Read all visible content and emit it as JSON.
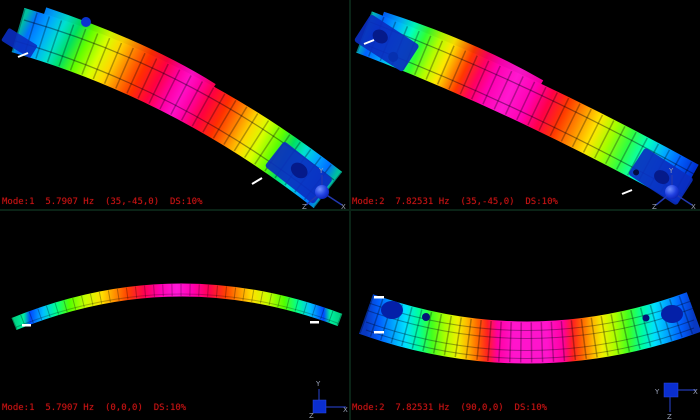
{
  "window": {
    "background": "#000000",
    "divider_color": "#0a2316",
    "description": "Modal analysis results - four viewports"
  },
  "colors": {
    "label_red": "#c81515",
    "triad_line_blue": "#2238b0",
    "triad_label_gray": "#9aa2b8",
    "triad_marker_blue": "#0a2ed0",
    "clamp_blue": "#0a2ec0",
    "eye_hole_blue": "#051a8a",
    "constraint_marker_white": "#ffffff"
  },
  "colormap_min_to_max": [
    "#0030d0",
    "#0070ff",
    "#00b0ff",
    "#00e0d0",
    "#00ff80",
    "#60ff00",
    "#d8ff00",
    "#ffd800",
    "#ff8800",
    "#ff3000",
    "#ff0040",
    "#ff10c8"
  ],
  "viewports": [
    {
      "name": "top-left",
      "label": "Mode:1  5.7907 Hz  (35,-45,0)  DS:10%",
      "triad_labels": [
        "Y",
        "Z",
        "X"
      ]
    },
    {
      "name": "top-right",
      "label": "Mode:2  7.82531 Hz  (35,-45,0)  DS:10%",
      "triad_labels": [
        "Y",
        "Z",
        "X"
      ]
    },
    {
      "name": "bottom-left",
      "label": "Mode:1  5.7907 Hz  (0,0,0)  DS:10%",
      "triad_labels": [
        "Y",
        "Z",
        "X"
      ]
    },
    {
      "name": "bottom-right",
      "label": "Mode:2  7.82531 Hz  (90,0,0)  DS:10%",
      "triad_labels": [
        "Y",
        "X",
        "Z"
      ]
    }
  ],
  "gradients": {
    "grad-tl": [
      [
        0,
        "#00c0a0"
      ],
      [
        0.03,
        "#0070ff"
      ],
      [
        0.07,
        "#00a8ff"
      ],
      [
        0.11,
        "#00e0d0"
      ],
      [
        0.15,
        "#00e060"
      ],
      [
        0.19,
        "#60ff00"
      ],
      [
        0.24,
        "#d8ff00"
      ],
      [
        0.28,
        "#ffd800"
      ],
      [
        0.32,
        "#ff8800"
      ],
      [
        0.37,
        "#ff3000"
      ],
      [
        0.42,
        "#ff0040"
      ],
      [
        0.47,
        "#ff00a8"
      ],
      [
        0.5,
        "#ff10c8"
      ],
      [
        0.53,
        "#ff00a8"
      ],
      [
        0.58,
        "#ff0040"
      ],
      [
        0.63,
        "#ff3000"
      ],
      [
        0.68,
        "#ff8800"
      ],
      [
        0.72,
        "#ffd800"
      ],
      [
        0.76,
        "#d8ff00"
      ],
      [
        0.81,
        "#60ff00"
      ],
      [
        0.85,
        "#00e060"
      ],
      [
        0.89,
        "#00e0d0"
      ],
      [
        0.93,
        "#00a8ff"
      ],
      [
        0.97,
        "#0070ff"
      ],
      [
        1,
        "#00c0a0"
      ]
    ],
    "grad-tr": [
      [
        0,
        "#00c0b0"
      ],
      [
        0.03,
        "#0060ff"
      ],
      [
        0.08,
        "#00b0ff"
      ],
      [
        0.12,
        "#00ffc0"
      ],
      [
        0.16,
        "#30ff30"
      ],
      [
        0.2,
        "#b0ff00"
      ],
      [
        0.24,
        "#ffe800"
      ],
      [
        0.27,
        "#ff9000"
      ],
      [
        0.3,
        "#ff3800"
      ],
      [
        0.34,
        "#ff0060"
      ],
      [
        0.38,
        "#ff00b0"
      ],
      [
        0.44,
        "#ff18d0"
      ],
      [
        0.5,
        "#ff00b0"
      ],
      [
        0.55,
        "#ff0048"
      ],
      [
        0.6,
        "#ff3800"
      ],
      [
        0.65,
        "#ff9000"
      ],
      [
        0.7,
        "#ffe800"
      ],
      [
        0.75,
        "#a0ff00"
      ],
      [
        0.8,
        "#30ff40"
      ],
      [
        0.85,
        "#00ffc0"
      ],
      [
        0.9,
        "#00b0ff"
      ],
      [
        0.95,
        "#0060ff"
      ],
      [
        1,
        "#0030d0"
      ]
    ],
    "grad-bl": [
      [
        0,
        "#00d080"
      ],
      [
        0.03,
        "#00f0a0"
      ],
      [
        0.05,
        "#0048ff"
      ],
      [
        0.09,
        "#00c0ff"
      ],
      [
        0.13,
        "#00ff90"
      ],
      [
        0.17,
        "#50ff00"
      ],
      [
        0.22,
        "#c8ff00"
      ],
      [
        0.27,
        "#ffe000"
      ],
      [
        0.31,
        "#ff9000"
      ],
      [
        0.35,
        "#ff4000"
      ],
      [
        0.4,
        "#ff0050"
      ],
      [
        0.45,
        "#ff00b0"
      ],
      [
        0.5,
        "#ff18d8"
      ],
      [
        0.55,
        "#ff00b0"
      ],
      [
        0.6,
        "#ff0050"
      ],
      [
        0.65,
        "#ff4000"
      ],
      [
        0.69,
        "#ff9000"
      ],
      [
        0.73,
        "#ffe000"
      ],
      [
        0.78,
        "#c8ff00"
      ],
      [
        0.83,
        "#50ff00"
      ],
      [
        0.87,
        "#00ff90"
      ],
      [
        0.91,
        "#00c0ff"
      ],
      [
        0.95,
        "#0048ff"
      ],
      [
        0.97,
        "#00f0a0"
      ],
      [
        1,
        "#00d080"
      ]
    ],
    "grad-br": [
      [
        0,
        "#0838c0"
      ],
      [
        0.04,
        "#0060ff"
      ],
      [
        0.08,
        "#00a0ff"
      ],
      [
        0.12,
        "#00e0ff"
      ],
      [
        0.16,
        "#00ff9c"
      ],
      [
        0.2,
        "#40ff20"
      ],
      [
        0.24,
        "#a8ff00"
      ],
      [
        0.28,
        "#f0f000"
      ],
      [
        0.31,
        "#ffb400"
      ],
      [
        0.34,
        "#ff6800"
      ],
      [
        0.37,
        "#ff2020"
      ],
      [
        0.4,
        "#ff00a0"
      ],
      [
        0.45,
        "#ff14cc"
      ],
      [
        0.55,
        "#ff14cc"
      ],
      [
        0.6,
        "#ff00a0"
      ],
      [
        0.63,
        "#ff2020"
      ],
      [
        0.66,
        "#ff6800"
      ],
      [
        0.69,
        "#ffb400"
      ],
      [
        0.72,
        "#f0f000"
      ],
      [
        0.76,
        "#a8ff00"
      ],
      [
        0.8,
        "#40ff20"
      ],
      [
        0.84,
        "#00ff9c"
      ],
      [
        0.88,
        "#00e0ff"
      ],
      [
        0.92,
        "#00a0ff"
      ],
      [
        0.96,
        "#0060ff"
      ],
      [
        1,
        "#0838c0"
      ]
    ]
  }
}
